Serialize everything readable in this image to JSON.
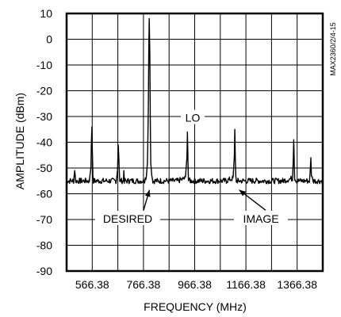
{
  "chart_data": {
    "type": "line",
    "title": "",
    "xlabel": "FREQUENCY (MHz)",
    "ylabel": "AMPLITUDE (dBm)",
    "side_label": "MAX2360/2/4-15",
    "xlim": [
      466.38,
      1466.38
    ],
    "ylim": [
      -90,
      10
    ],
    "x_ticks": [
      566.38,
      766.38,
      966.38,
      1166.38,
      1366.38
    ],
    "x_tick_labels": [
      "566.38",
      "766.38",
      "966.38",
      "1166.38",
      "1366.38"
    ],
    "y_ticks": [
      10,
      0,
      -10,
      -20,
      -30,
      -40,
      -50,
      -60,
      -70,
      -80,
      -90
    ],
    "y_tick_labels": [
      "10",
      "0",
      "-10",
      "-20",
      "-30",
      "-40",
      "-50",
      "-60",
      "-70",
      "-80",
      "-90"
    ],
    "grid": true,
    "noise_floor": -55,
    "series": [
      {
        "x": [
          466.38,
          494,
          498,
          502,
          520,
          555,
          561,
          563,
          565,
          567,
          569,
          571,
          575,
          605,
          660,
          665,
          668,
          671,
          674,
          680,
          688,
          690,
          692,
          694,
          710,
          770,
          778,
          782,
          785,
          787,
          789,
          791,
          793,
          795,
          799,
          803,
          820,
          900,
          930,
          936,
          938,
          940,
          942,
          948,
          1000,
          1090,
          1116,
          1121,
          1123,
          1125,
          1127,
          1129,
          1135,
          1200,
          1310,
          1348,
          1351,
          1353,
          1355,
          1357,
          1365,
          1415,
          1418,
          1420,
          1422,
          1430,
          1466.38
        ],
        "y": [
          -55,
          -55,
          -51,
          -55,
          -55,
          -55,
          -50,
          -41,
          -34,
          -44,
          -53,
          -55,
          -55,
          -55,
          -55,
          -51,
          -41,
          -48,
          -55,
          -55,
          -55,
          -51,
          -55,
          -55,
          -55,
          -55,
          -53,
          -48,
          -30,
          -5,
          8,
          -5,
          -30,
          -48,
          -53,
          -55,
          -55,
          -55,
          -54,
          -46,
          -36,
          -46,
          -54,
          -55,
          -55,
          -55,
          -54,
          -46,
          -35,
          -46,
          -54,
          -55,
          -55,
          -55,
          -55,
          -54,
          -48,
          -39,
          -48,
          -54,
          -55,
          -55,
          -50,
          -46,
          -53,
          -55,
          -55
        ]
      }
    ],
    "annotations": [
      {
        "text": "LO"
      },
      {
        "text": "DESIRED"
      },
      {
        "text": "IMAGE"
      }
    ]
  }
}
